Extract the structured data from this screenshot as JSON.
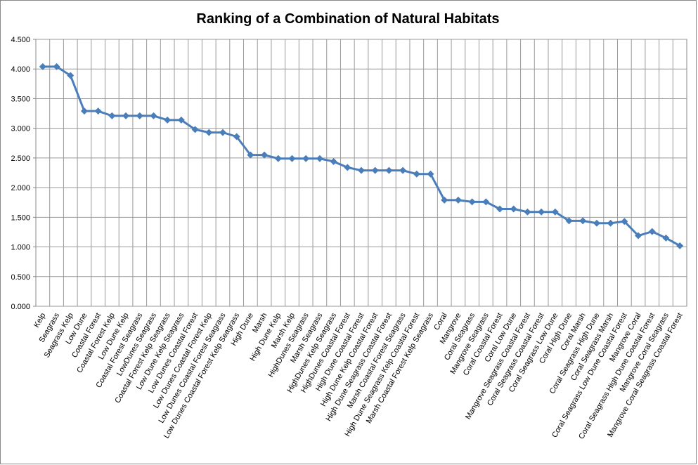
{
  "chart_data": {
    "type": "line",
    "title": "Ranking of a Combination of Natural Habitats",
    "categories": [
      "Kelp",
      "Seagrass",
      "Seagrass Kelp",
      "Low Dune",
      "Coastal Forest",
      "Coastal Forest Kelp",
      "Low Dune Kelp",
      "Coastal Forest Seagrass",
      "LowDunes Seagrass",
      "Coastal Forest  Kelp Seagrass",
      "Low Dune Kelp Seagrass",
      "Low Dunes Coastal Forest",
      "Low Dunes Coastal Forest Kelp",
      "Low Dunes Coastal Forest Seagrass",
      "Low Dunes Coastal Forest Kelp Seagrass",
      "High Dune",
      "Marsh",
      "High Dune Kelp",
      "Marsh Kelp",
      "HighDunes Seagrass",
      "Marsh Seagrass",
      "HighDunes Kelp Seagrass",
      "HighDunes Coastal Forest",
      "High Dune Coastal Forest",
      "High Dune Kelp Coastal Forest",
      "High Dune Seagrass Coastal Forest",
      "Marsh Coastal Forest Seagrass",
      "High Dune  Seagrass Kelp Coastal Forest",
      "Marsh Coastal Forest Kelp Seagrass",
      "Coral",
      "Mangrove",
      "Coral Seagrass",
      "Mangrove Seagrass",
      "Coral Coastal Forest",
      "Coral Low Dune",
      "Mangrove Seagrass Coastal Forest",
      "Coral Seagrass Coastal Forest",
      "Coral Seagrass Low Dune",
      "Coral High Dune",
      "Coral Marsh",
      "Coral Seagrass High Dune",
      "Coral Seagrass Marsh",
      "Coral Seagrass Low Dune Coastal Forest",
      "Mangrove Coral",
      "Coral Seagrass High Dune Coastal Forest",
      "Mangrove Coral Seagrass",
      "Mangrove Coral Seagrass Coastal Forest"
    ],
    "values": [
      4.04,
      4.04,
      3.89,
      3.29,
      3.29,
      3.21,
      3.21,
      3.21,
      3.21,
      3.14,
      3.14,
      2.98,
      2.93,
      2.93,
      2.86,
      2.55,
      2.55,
      2.49,
      2.49,
      2.49,
      2.49,
      2.44,
      2.34,
      2.29,
      2.29,
      2.29,
      2.29,
      2.23,
      2.23,
      1.79,
      1.79,
      1.76,
      1.76,
      1.64,
      1.64,
      1.59,
      1.59,
      1.59,
      1.44,
      1.44,
      1.4,
      1.4,
      1.43,
      1.19,
      1.26,
      1.15,
      1.02
    ],
    "color": "#4a7ebb",
    "ylim": [
      0,
      4.5
    ],
    "yticks": [
      {
        "value": 0,
        "label": "0.000"
      },
      {
        "value": 0.5,
        "label": "0.500"
      },
      {
        "value": 1,
        "label": "1.000"
      },
      {
        "value": 1.5,
        "label": "1.500"
      },
      {
        "value": 2,
        "label": "2.000"
      },
      {
        "value": 2.5,
        "label": "2.500"
      },
      {
        "value": 3,
        "label": "3.000"
      },
      {
        "value": 3.5,
        "label": "3.500"
      },
      {
        "value": 4,
        "label": "4.000"
      },
      {
        "value": 4.5,
        "label": "4.500"
      }
    ],
    "grid": true
  }
}
